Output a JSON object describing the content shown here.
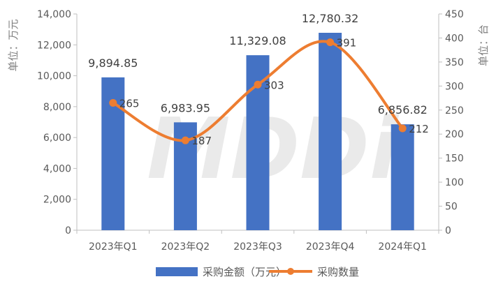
{
  "chart_data": {
    "type": "bar+line",
    "categories": [
      "2023年Q1",
      "2023年Q2",
      "2023年Q3",
      "2023年Q4",
      "2024年Q1"
    ],
    "series": [
      {
        "name": "采购金额（万元）",
        "type": "bar",
        "axis": "left",
        "color": "#4472c4",
        "values": [
          9894.85,
          6983.95,
          11329.08,
          12780.32,
          6856.82
        ],
        "labels": [
          "9,894.85",
          "6,983.95",
          "11,329.08",
          "12,780.32",
          "6,856.82"
        ]
      },
      {
        "name": "采购数量",
        "type": "line",
        "axis": "right",
        "color": "#ed7d31",
        "values": [
          265,
          187,
          303,
          391,
          212
        ],
        "labels": [
          "265",
          "187",
          "303",
          "391",
          "212"
        ]
      }
    ],
    "y_left": {
      "label": "单位：万元",
      "ylim": [
        0,
        14000
      ],
      "ticks": [
        0,
        2000,
        4000,
        6000,
        8000,
        10000,
        12000,
        14000
      ],
      "tick_labels": [
        "0",
        "2,000",
        "4,000",
        "6,000",
        "8,000",
        "10,000",
        "12,000",
        "14,000"
      ]
    },
    "y_right": {
      "label": "单位：台",
      "ylim": [
        0,
        450
      ],
      "ticks": [
        0,
        50,
        100,
        150,
        200,
        250,
        300,
        350,
        400,
        450
      ],
      "tick_labels": [
        "0",
        "50",
        "100",
        "150",
        "200",
        "250",
        "300",
        "350",
        "400",
        "450"
      ]
    },
    "grid": false,
    "legend": "bottom",
    "watermark": "MDDi"
  }
}
